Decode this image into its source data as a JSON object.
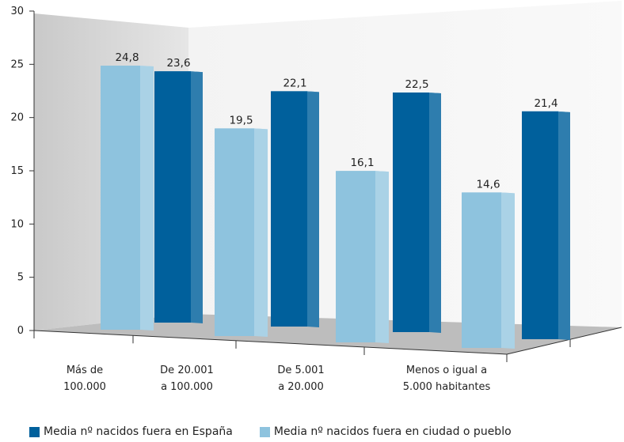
{
  "chart_data": {
    "type": "bar",
    "categories": [
      [
        "Más de",
        "100.000"
      ],
      [
        "De 20.001",
        "a 100.000"
      ],
      [
        "De 5.001",
        "a 20.000"
      ],
      [
        "Menos o igual a",
        "5.000 habitantes"
      ]
    ],
    "series": [
      {
        "name": "Media nº nacidos fuera en ciudad o pueblo",
        "values": [
          24.8,
          19.5,
          16.1,
          14.6
        ],
        "color": "#8ec3de"
      },
      {
        "name": "Media nº nacidos fuera en España",
        "values": [
          23.6,
          22.1,
          22.5,
          21.4
        ],
        "color": "#00609c"
      }
    ],
    "value_labels": [
      [
        "24,8",
        "19,5",
        "16,1",
        "14,6"
      ],
      [
        "23,6",
        "22,1",
        "22,5",
        "21,4"
      ]
    ],
    "ylim": [
      0,
      30
    ],
    "yticks": [
      0,
      5,
      10,
      15,
      20,
      25,
      30
    ],
    "grid": false,
    "style": "3d-perspective",
    "legend_position": "bottom"
  },
  "legend": {
    "items": [
      {
        "label": "Media nº nacidos fuera en España",
        "color": "#00609c"
      },
      {
        "label": "Media nº nacidos fuera en ciudad o pueblo",
        "color": "#8ec3de"
      }
    ]
  }
}
